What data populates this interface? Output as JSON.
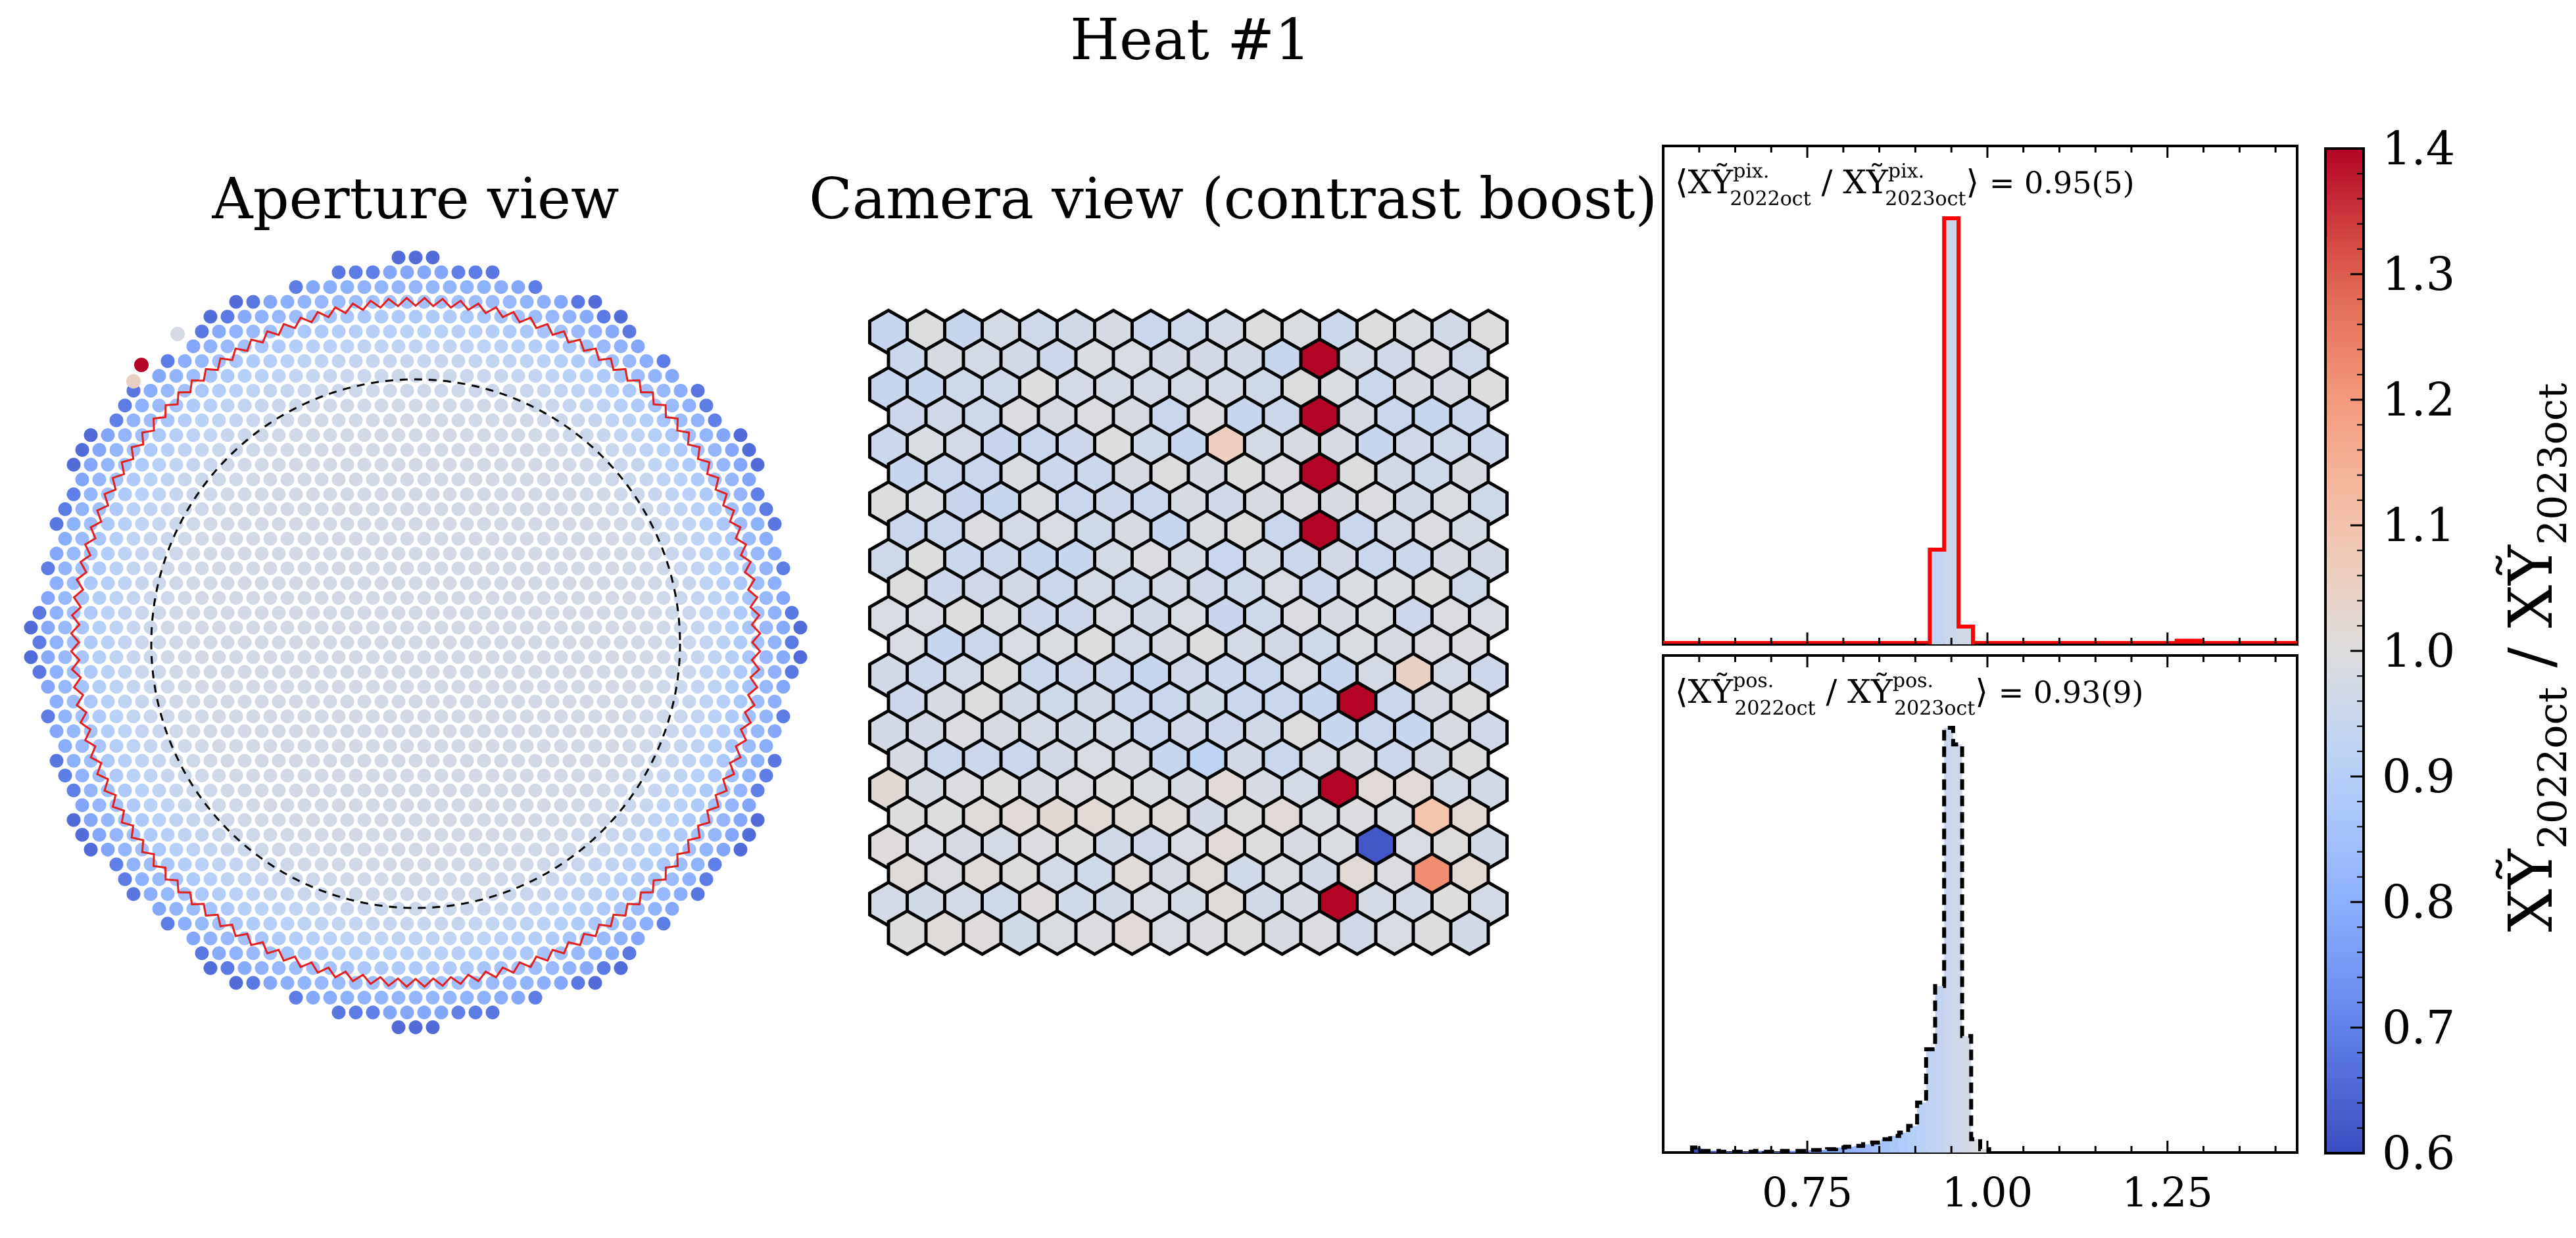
{
  "figure": {
    "title": "Heat #1"
  },
  "panels": {
    "aperture_title": "Aperture view",
    "camera_title": "Camera view (contrast boost)"
  },
  "colorbar": {
    "label_main": "XỸ",
    "label_sub_num": "2022oct",
    "label_sep": " / ",
    "label_main2": "XỸ",
    "label_sub_den": "2023oct",
    "range": [
      0.6,
      1.4
    ],
    "ticks": [
      "0.6",
      "0.7",
      "0.8",
      "0.9",
      "1.0",
      "1.1",
      "1.2",
      "1.3",
      "1.4"
    ],
    "colormap": "coolwarm"
  },
  "chart_data": [
    {
      "type": "heatmap",
      "name": "aperture",
      "title": "Aperture view",
      "layout": "hexagonal pixel array (dodecagonal aperture)",
      "rings": [
        "red hexagonal outline",
        "black dashed circle"
      ],
      "center_value": 0.97,
      "edge_value": 0.72,
      "outlier_values": [
        1.4,
        1.05,
        0.98
      ]
    },
    {
      "type": "heatmap",
      "name": "camera",
      "title": "Camera view (contrast boost)",
      "layout": "hexagonal grid 17 columns x 14 rows",
      "baseline_value": 0.97,
      "highlights": [
        {
          "col": 11,
          "row": 1,
          "value": 1.4
        },
        {
          "col": 11,
          "row": 3,
          "value": 1.4
        },
        {
          "col": 11,
          "row": 5,
          "value": 1.4
        },
        {
          "col": 11,
          "row": 7,
          "value": 1.4
        },
        {
          "col": 9,
          "row": 4,
          "value": 1.06
        },
        {
          "col": 12,
          "row": 13,
          "value": 1.4
        },
        {
          "col": 12,
          "row": 16,
          "value": 1.4
        },
        {
          "col": 12,
          "row": 20,
          "value": 1.4
        },
        {
          "col": 13,
          "row": 18,
          "value": 0.62
        },
        {
          "col": 14,
          "row": 17,
          "value": 1.1
        },
        {
          "col": 14,
          "row": 19,
          "value": 1.22
        },
        {
          "col": 14,
          "row": 12,
          "value": 1.05
        },
        {
          "col": 8,
          "row": 15,
          "value": 0.92
        }
      ]
    },
    {
      "type": "bar",
      "name": "pix-histogram",
      "annotation_prefix": "⟨XỸ",
      "annotation_sup": "pix.",
      "annotation_sub1": "2022oct",
      "annotation_sub2": "2023oct",
      "annotation_value": "= 0.95(5)",
      "xlim": [
        0.55,
        1.43
      ],
      "bin_width": 0.02,
      "x": [
        0.92,
        0.94,
        0.96
      ],
      "values": [
        16,
        72,
        3
      ],
      "baseline_values_outside": 0.5,
      "edge_color": "#ff0000"
    },
    {
      "type": "bar",
      "name": "pos-histogram",
      "annotation_prefix": "⟨XỸ",
      "annotation_sup": "pos.",
      "annotation_sub1": "2022oct",
      "annotation_sub2": "2023oct",
      "annotation_value": "= 0.93(9)",
      "xlim": [
        0.55,
        1.43
      ],
      "xticks": [
        "0.75",
        "1.00",
        "1.25"
      ],
      "xtick_values": [
        0.75,
        1.0,
        1.25
      ],
      "bin_width": 0.0125,
      "x": [
        0.59,
        0.6025,
        0.615,
        0.6275,
        0.64,
        0.6525,
        0.665,
        0.6775,
        0.69,
        0.7025,
        0.715,
        0.7275,
        0.74,
        0.7525,
        0.765,
        0.7775,
        0.79,
        0.8025,
        0.815,
        0.8275,
        0.84,
        0.8525,
        0.865,
        0.8775,
        0.89,
        0.9025,
        0.915,
        0.9275,
        0.94,
        0.9525,
        0.965,
        0.9775,
        0.99
      ],
      "values": [
        3,
        1,
        1,
        0.5,
        0.5,
        0.5,
        0.5,
        1,
        0.5,
        0.5,
        1,
        1,
        1,
        1.5,
        1.5,
        2,
        3,
        3.5,
        4,
        5,
        6,
        8,
        10,
        12,
        16,
        30,
        62,
        100,
        255,
        245,
        70,
        8,
        2
      ],
      "edge_color": "#000000",
      "edge_style": "dashed"
    }
  ]
}
